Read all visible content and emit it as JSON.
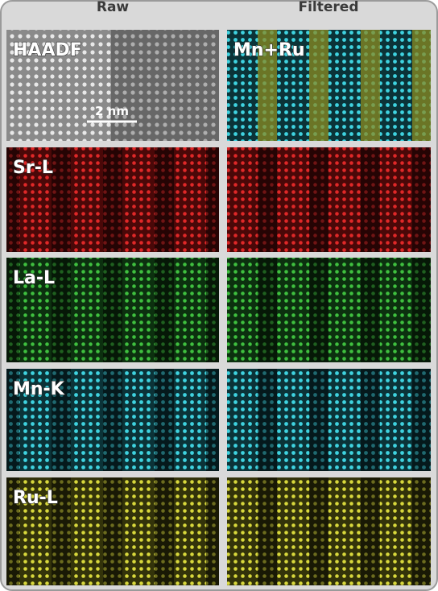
{
  "headers": {
    "raw": "Raw",
    "filtered": "Filtered"
  },
  "rows": [
    {
      "raw_label": "HAADF",
      "filtered_label": "Mn+Ru"
    },
    {
      "raw_label": "Sr-L"
    },
    {
      "raw_label": "La-L"
    },
    {
      "raw_label": "Mn-K"
    },
    {
      "raw_label": "Ru-L"
    }
  ],
  "scale_bar": "2 nm"
}
